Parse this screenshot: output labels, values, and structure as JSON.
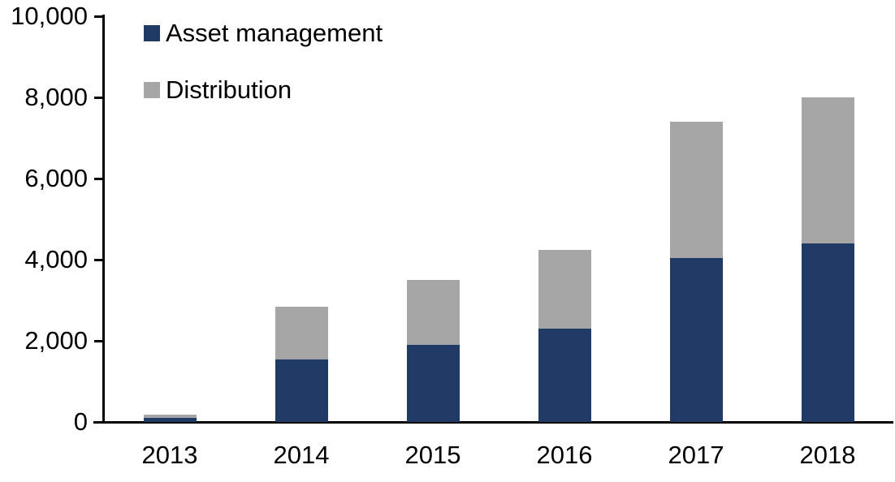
{
  "chart_data": {
    "type": "bar",
    "stacked": true,
    "title": "",
    "xlabel": "",
    "ylabel": "",
    "categories": [
      "2013",
      "2014",
      "2015",
      "2016",
      "2017",
      "2018"
    ],
    "series": [
      {
        "name": "Asset management",
        "color": "#203A66",
        "values": [
          100,
          1550,
          1900,
          2300,
          4050,
          4400
        ]
      },
      {
        "name": "Distribution",
        "color": "#A6A6A6",
        "values": [
          90,
          1300,
          1600,
          1950,
          3350,
          3600
        ]
      }
    ],
    "totals": [
      190,
      2850,
      3500,
      4250,
      7400,
      8000
    ],
    "ylim": [
      0,
      10000
    ],
    "ytick_step": 2000,
    "ytick_labels": [
      "0",
      "2,000",
      "4,000",
      "6,000",
      "8,000",
      "10,000"
    ],
    "grid": false,
    "legend_position": "top-left",
    "axis_color": "#000000",
    "background": "#FFFFFF",
    "text_color": "#000000"
  }
}
